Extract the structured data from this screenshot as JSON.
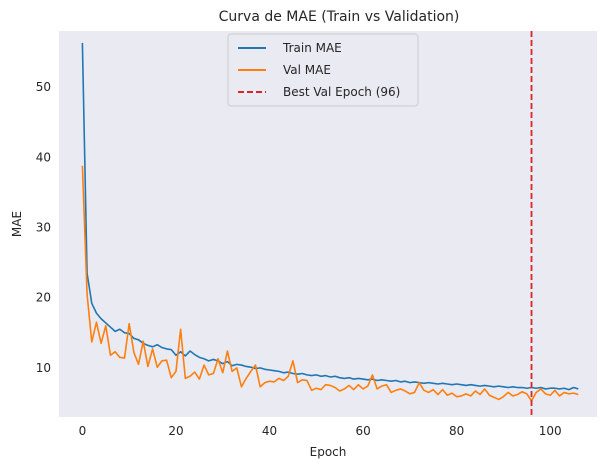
{
  "chart_data": {
    "type": "line",
    "title": "Curva de MAE (Train vs Validation)",
    "xlabel": "Epoch",
    "ylabel": "MAE",
    "xlim": [
      -5,
      110
    ],
    "ylim": [
      3,
      58
    ],
    "xticks": [
      0,
      20,
      40,
      60,
      80,
      100
    ],
    "yticks": [
      10,
      20,
      30,
      40,
      50
    ],
    "grid": false,
    "legend_position": "upper-center",
    "background_color": "#eaeaf2",
    "series": [
      {
        "name": "Train MAE",
        "color": "#1f77b4",
        "style": "solid",
        "values": [
          56.3,
          23.5,
          19.2,
          17.8,
          17.0,
          16.4,
          15.8,
          15.2,
          15.5,
          15.0,
          14.9,
          14.2,
          14.0,
          13.5,
          13.2,
          13.0,
          13.3,
          12.9,
          12.7,
          12.6,
          11.8,
          12.3,
          11.7,
          12.4,
          11.9,
          11.5,
          11.3,
          11.0,
          11.2,
          11.0,
          10.6,
          10.9,
          10.3,
          10.5,
          10.4,
          10.2,
          10.1,
          9.9,
          10.0,
          9.8,
          9.7,
          9.6,
          9.5,
          9.3,
          9.4,
          9.2,
          9.1,
          9.2,
          9.0,
          8.9,
          9.0,
          8.8,
          8.9,
          8.7,
          8.8,
          8.6,
          8.5,
          8.6,
          8.4,
          8.5,
          8.4,
          8.3,
          8.4,
          8.2,
          8.3,
          8.2,
          8.1,
          8.2,
          8.0,
          8.1,
          7.9,
          8.0,
          7.9,
          7.8,
          7.9,
          7.8,
          7.7,
          7.8,
          7.7,
          7.6,
          7.7,
          7.6,
          7.5,
          7.6,
          7.5,
          7.4,
          7.5,
          7.4,
          7.3,
          7.4,
          7.3,
          7.2,
          7.3,
          7.2,
          7.2,
          7.1,
          7.2,
          7.1,
          7.2,
          7.0,
          7.1,
          7.1,
          7.0,
          7.1,
          6.9,
          7.2,
          7.0
        ]
      },
      {
        "name": "Val MAE",
        "color": "#ff7f0e",
        "style": "solid",
        "values": [
          38.8,
          20.5,
          13.7,
          16.5,
          13.5,
          16.0,
          11.8,
          12.3,
          11.5,
          11.4,
          16.3,
          12.2,
          10.5,
          13.8,
          10.2,
          12.7,
          10.1,
          11.0,
          11.1,
          8.6,
          9.5,
          15.5,
          8.5,
          8.8,
          9.4,
          8.4,
          10.4,
          9.0,
          9.2,
          11.3,
          9.3,
          12.4,
          9.5,
          10.0,
          7.3,
          8.5,
          9.5,
          10.4,
          7.3,
          7.9,
          8.1,
          8.0,
          8.5,
          8.2,
          8.8,
          11.0,
          7.9,
          8.3,
          8.2,
          6.8,
          7.1,
          6.9,
          7.6,
          7.5,
          7.2,
          6.7,
          7.0,
          7.5,
          6.9,
          7.6,
          7.0,
          7.4,
          9.0,
          7.0,
          7.4,
          7.6,
          6.5,
          6.8,
          7.0,
          6.7,
          6.3,
          6.5,
          7.9,
          6.8,
          6.5,
          6.9,
          6.2,
          6.9,
          6.1,
          6.4,
          5.9,
          6.0,
          6.3,
          6.0,
          6.7,
          6.2,
          7.0,
          6.1,
          5.8,
          5.5,
          5.9,
          6.5,
          6.0,
          6.2,
          6.6,
          6.3,
          5.3,
          6.5,
          7.0,
          6.3,
          6.1,
          6.8,
          6.0,
          6.5,
          6.3,
          6.4,
          6.2
        ]
      }
    ],
    "annotations": [
      {
        "type": "vline",
        "x": 96,
        "name": "Best Val Epoch (96)",
        "color": "#d62728",
        "style": "dashed"
      }
    ]
  }
}
